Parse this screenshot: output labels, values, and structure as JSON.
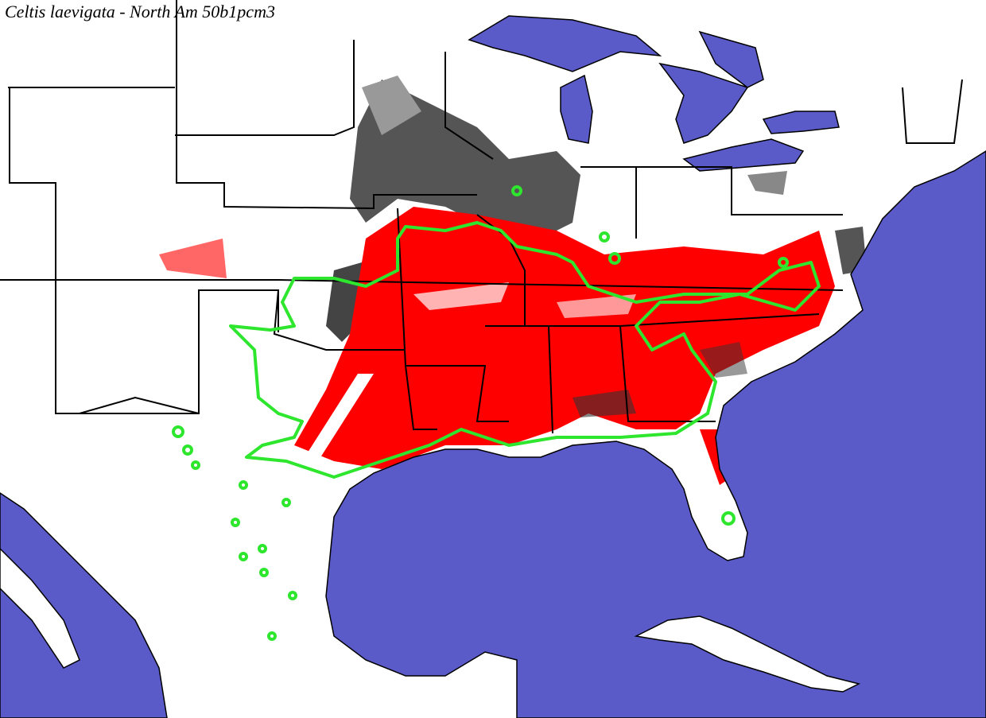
{
  "title": "Celtis laevigata - North Am 50b1pcm3"
}
